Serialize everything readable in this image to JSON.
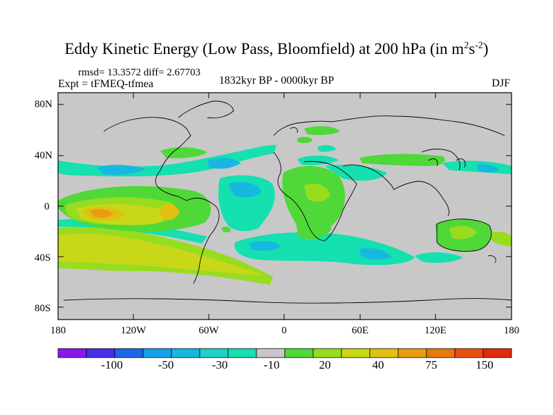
{
  "title": {
    "main": "Eddy Kinetic Energy (Low Pass, Bloomfield) at 200 hPa (in m",
    "sup1": "2",
    "mid": "s",
    "sup2": "-2",
    "end": ")"
  },
  "stats": "rmsd= 13.3572 diff= 2.67703",
  "experiment": "Expt = tFMEQ-tfmea",
  "period": "1832kyr BP - 0000kyr BP",
  "season": "DJF",
  "axes": {
    "y_ticks": [
      "80N",
      "40N",
      "0",
      "40S",
      "80S"
    ],
    "x_ticks": [
      "180",
      "120W",
      "60W",
      "0",
      "60E",
      "120E",
      "180"
    ]
  },
  "colorbar": {
    "colors": [
      "#8a18e8",
      "#4830e8",
      "#1c68e8",
      "#18a0e8",
      "#16b8e0",
      "#20d0c8",
      "#14e0b0",
      "#c8c8c8",
      "#50d838",
      "#98dc20",
      "#c8d818",
      "#e0c010",
      "#e89c10",
      "#e87810",
      "#e85010",
      "#e02c0c"
    ],
    "labels": [
      "-100",
      "-50",
      "-30",
      "-10",
      "20",
      "40",
      "75",
      "150"
    ]
  }
}
